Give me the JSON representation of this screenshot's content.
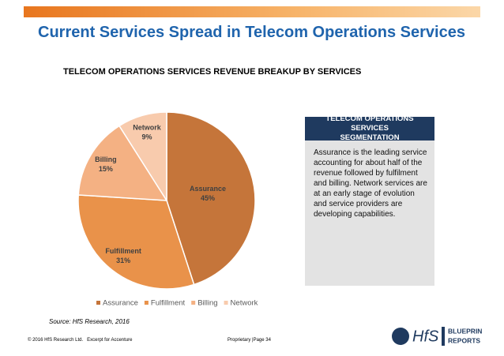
{
  "header": {
    "title": "Current Services Spread in Telecom Operations Services"
  },
  "chart_data": {
    "type": "pie",
    "title": "TELECOM OPERATIONS SERVICES REVENUE BREAKUP BY SERVICES",
    "categories": [
      "Assurance",
      "Fulfillment",
      "Billing",
      "Network"
    ],
    "values": [
      45,
      31,
      15,
      9
    ],
    "value_labels": [
      "45%",
      "31%",
      "15%",
      "9%"
    ],
    "colors": [
      "#c5753a",
      "#e9924a",
      "#f4b183",
      "#f8cbad"
    ],
    "legend": "bottom"
  },
  "panel": {
    "title": "TELECOM OPERATIONS SERVICES SEGMENTATION",
    "text": "Assurance is the leading service accounting for about half of the revenue followed by fulfilment and billing. Network services are at an early stage of evolution and service providers are developing capabilities."
  },
  "source": "Source: HfS Research, 2016",
  "footer": {
    "left": "© 2016 HfS Research Ltd.   Excerpt for Accenture",
    "right": "Proprietary |Page 34"
  },
  "logo": {
    "brand": "HfS",
    "line1": "BLUEPRINT",
    "line2": "REPORTS"
  }
}
